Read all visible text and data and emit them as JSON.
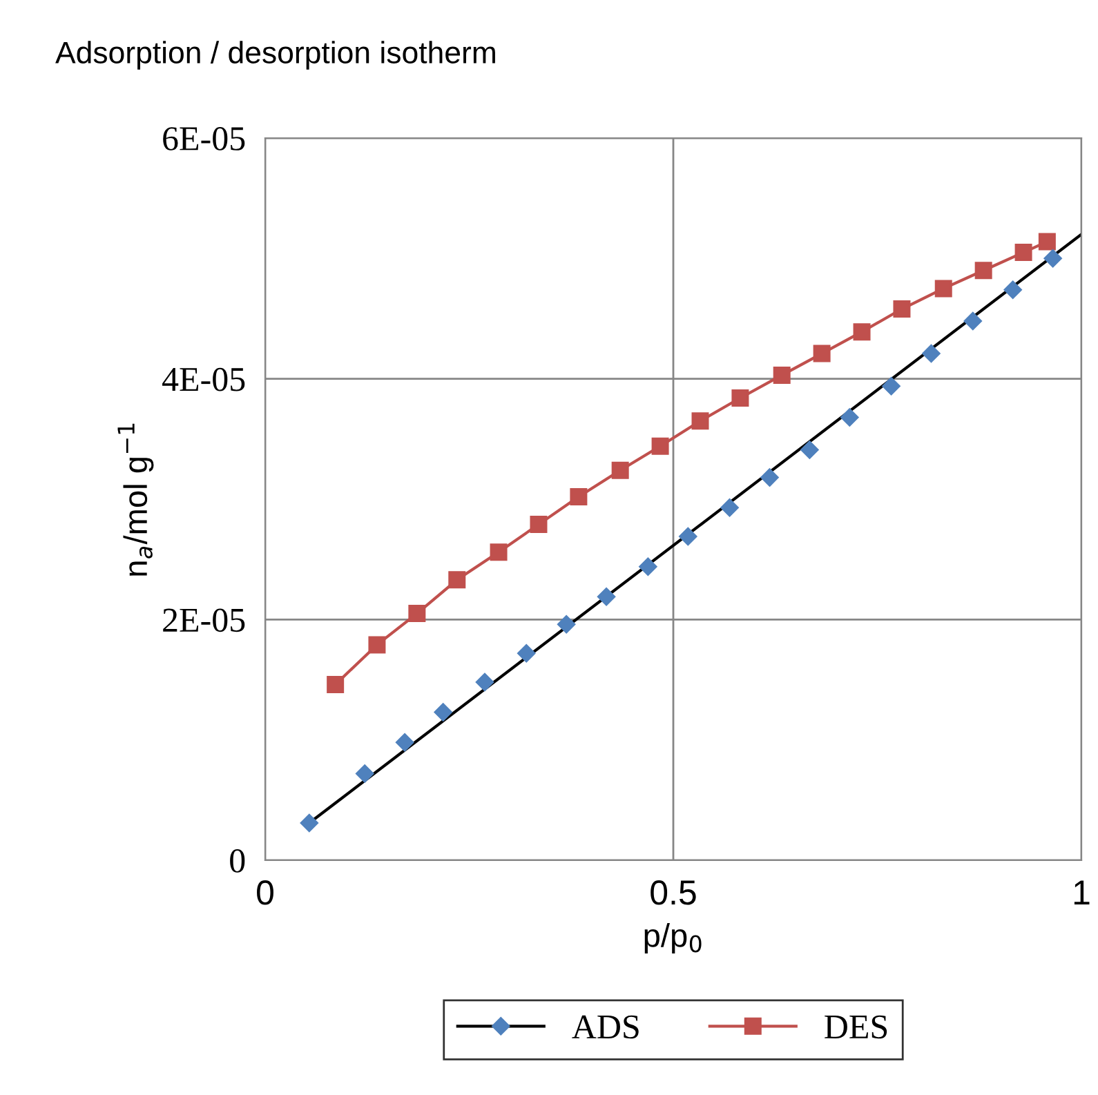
{
  "chart_data": {
    "type": "line",
    "title": "Adsorption / desorption isotherm",
    "xlabel": "p/p$_{0}$",
    "ylabel": "n$_{a}$/mol g$^{−1}$",
    "xlim": [
      0,
      1
    ],
    "xticks": [
      0,
      0.5,
      1
    ],
    "ylim": [
      0,
      6e-05
    ],
    "yticks": [
      0,
      {
        "value": 2e-05,
        "label": "2E-05"
      },
      {
        "value": 4e-05,
        "label": "4E-05"
      },
      {
        "value": 6e-05,
        "label": "6E-05"
      }
    ],
    "grid": true,
    "legend": "bottom",
    "series": [
      {
        "type": "line",
        "color": "#000000",
        "marker": "none",
        "x": [
          0.054,
          1.0
        ],
        "values": [
          3.1e-06,
          5.2e-05
        ]
      },
      {
        "name": "ADS",
        "type": "scatter",
        "color": "#4f81bd",
        "marker": "diamond",
        "x": [
          0.054,
          0.122,
          0.171,
          0.218,
          0.269,
          0.32,
          0.369,
          0.418,
          0.469,
          0.518,
          0.569,
          0.618,
          0.667,
          0.716,
          0.767,
          0.816,
          0.867,
          0.916,
          0.965
        ],
        "values": [
          3.1e-06,
          7.2e-06,
          9.8e-06,
          1.23e-05,
          1.48e-05,
          1.72e-05,
          1.96e-05,
          2.19e-05,
          2.44e-05,
          2.69e-05,
          2.93e-05,
          3.18e-05,
          3.41e-05,
          3.68e-05,
          3.94e-05,
          4.21e-05,
          4.48e-05,
          4.74e-05,
          5e-05
        ]
      },
      {
        "name": "DES",
        "color": "#c0504d",
        "marker": "square",
        "x": [
          0.086,
          0.137,
          0.186,
          0.235,
          0.286,
          0.335,
          0.384,
          0.435,
          0.484,
          0.533,
          0.582,
          0.633,
          0.682,
          0.731,
          0.78,
          0.831,
          0.88,
          0.929,
          0.958
        ],
        "values": [
          1.46e-05,
          1.79e-05,
          2.05e-05,
          2.33e-05,
          2.56e-05,
          2.79e-05,
          3.02e-05,
          3.24e-05,
          3.44e-05,
          3.65e-05,
          3.84e-05,
          4.03e-05,
          4.21e-05,
          4.39e-05,
          4.58e-05,
          4.75e-05,
          4.9e-05,
          5.05e-05,
          5.14e-05
        ]
      }
    ]
  }
}
